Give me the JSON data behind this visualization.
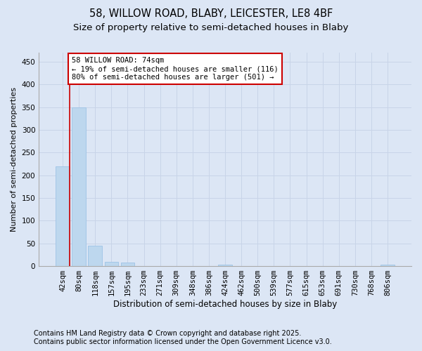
{
  "title_line1": "58, WILLOW ROAD, BLABY, LEICESTER, LE8 4BF",
  "title_line2": "Size of property relative to semi-detached houses in Blaby",
  "xlabel": "Distribution of semi-detached houses by size in Blaby",
  "ylabel": "Number of semi-detached properties",
  "categories": [
    "42sqm",
    "80sqm",
    "118sqm",
    "157sqm",
    "195sqm",
    "233sqm",
    "271sqm",
    "309sqm",
    "348sqm",
    "386sqm",
    "424sqm",
    "462sqm",
    "500sqm",
    "539sqm",
    "577sqm",
    "615sqm",
    "653sqm",
    "691sqm",
    "730sqm",
    "768sqm",
    "806sqm"
  ],
  "values": [
    220,
    350,
    45,
    10,
    8,
    0,
    0,
    0,
    0,
    0,
    3,
    0,
    0,
    0,
    0,
    0,
    0,
    0,
    0,
    0,
    3
  ],
  "bar_color": "#bdd7ee",
  "bar_edge_color": "#9dc3e6",
  "grid_color": "#c8d4e8",
  "bg_color": "#dce6f5",
  "annotation_box_text": "58 WILLOW ROAD: 74sqm\n← 19% of semi-detached houses are smaller (116)\n80% of semi-detached houses are larger (501) →",
  "annotation_box_color": "#ffffff",
  "annotation_box_edge": "#cc0000",
  "marker_line_color": "#cc0000",
  "ylim": [
    0,
    470
  ],
  "yticks": [
    0,
    50,
    100,
    150,
    200,
    250,
    300,
    350,
    400,
    450
  ],
  "footer_line1": "Contains HM Land Registry data © Crown copyright and database right 2025.",
  "footer_line2": "Contains public sector information licensed under the Open Government Licence v3.0.",
  "footer_fontsize": 7,
  "title1_fontsize": 10.5,
  "title2_fontsize": 9.5,
  "xlabel_fontsize": 8.5,
  "ylabel_fontsize": 8,
  "tick_fontsize": 7.5,
  "annot_fontsize": 7.5
}
